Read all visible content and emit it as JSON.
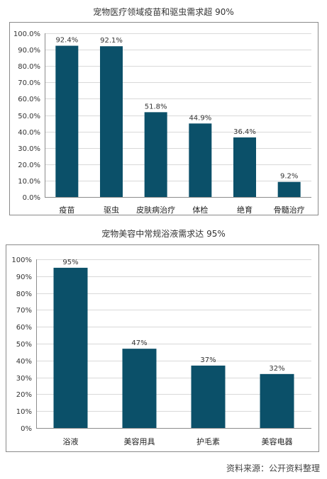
{
  "charts": [
    {
      "id": "c1",
      "chart_data": {
        "type": "bar",
        "title": "宠物医疗领域疫苗和驱虫需求超 90%",
        "categories": [
          "疫苗",
          "驱虫",
          "皮肤病治疗",
          "体检",
          "绝育",
          "骨髓治疗"
        ],
        "values": [
          92.4,
          92.1,
          51.8,
          44.9,
          36.4,
          9.2
        ],
        "data_labels": [
          "92.4%",
          "92.1%",
          "51.8%",
          "44.9%",
          "36.4%",
          "9.2%"
        ],
        "ylim": [
          0,
          100
        ],
        "yticks": [
          "0.0%",
          "10.0%",
          "20.0%",
          "30.0%",
          "40.0%",
          "50.0%",
          "60.0%",
          "70.0%",
          "80.0%",
          "90.0%",
          "100.0%"
        ],
        "grid": true,
        "color": "#0b5069"
      }
    },
    {
      "id": "c2",
      "chart_data": {
        "type": "bar",
        "title": "宠物美容中常规浴液需求达 95%",
        "categories": [
          "浴液",
          "美容用具",
          "护毛素",
          "美容电器"
        ],
        "values": [
          95,
          47,
          37,
          32
        ],
        "data_labels": [
          "95%",
          "47%",
          "37%",
          "32%"
        ],
        "ylim": [
          0,
          100
        ],
        "yticks": [
          "0%",
          "10%",
          "20%",
          "30%",
          "40%",
          "50%",
          "60%",
          "70%",
          "80%",
          "90%",
          "100%"
        ],
        "grid": true,
        "color": "#0b5069"
      }
    }
  ],
  "source": "资料来源：公开资料整理"
}
